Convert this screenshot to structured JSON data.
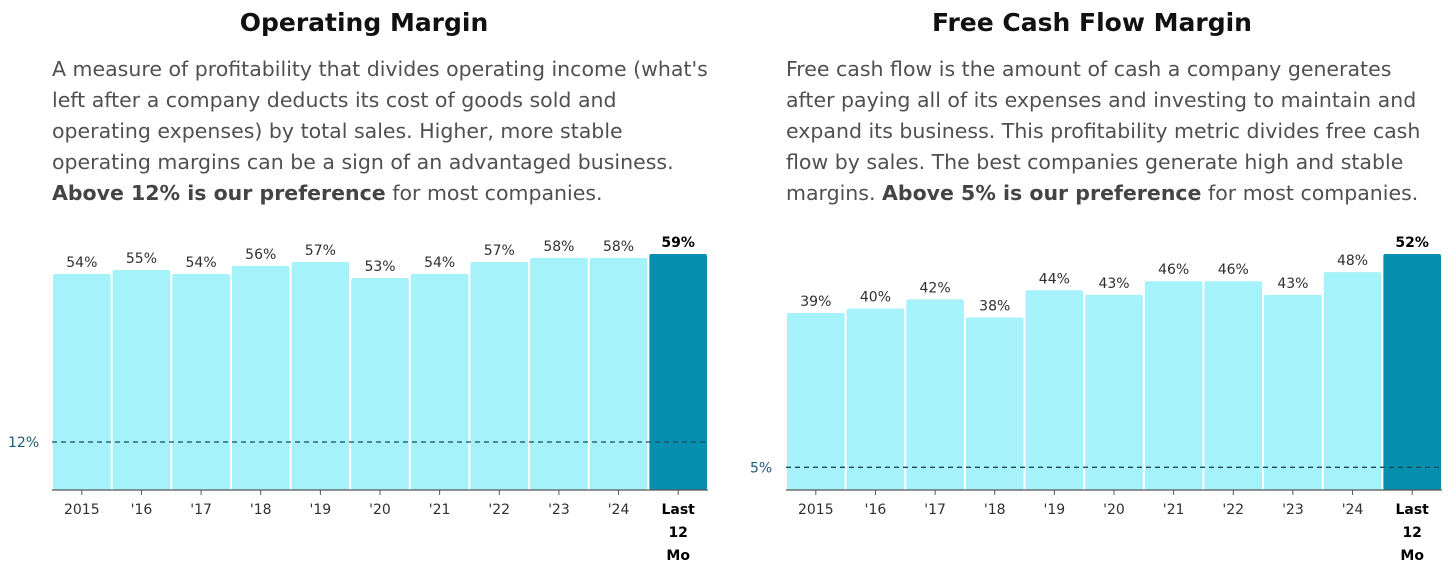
{
  "chart_data": [
    {
      "type": "bar",
      "title": "Operating Margin",
      "description": {
        "text": "A measure of profitability that divides operating income (what's left after a company deducts its cost of goods sold and operating expenses) by total sales. Higher, more stable operating margins can be a sign of an advantaged business.",
        "emphasis": "Above 12% is our preference",
        "tail": "for most companies."
      },
      "categories": [
        "2015",
        "'16",
        "'17",
        "'18",
        "'19",
        "'20",
        "'21",
        "'22",
        "'23",
        "'24",
        "Last 12 Mo"
      ],
      "values": [
        54,
        55,
        54,
        56,
        57,
        53,
        54,
        57,
        58,
        58,
        59
      ],
      "value_labels": [
        "54%",
        "55%",
        "54%",
        "56%",
        "57%",
        "53%",
        "54%",
        "57%",
        "58%",
        "58%",
        "59%"
      ],
      "highlight_index": 10,
      "reference_line": {
        "value": 12,
        "label": "12%"
      },
      "ylim": [
        0,
        59
      ],
      "colors": {
        "bar": "#a6f2fa",
        "highlight": "#078fb0"
      }
    },
    {
      "type": "bar",
      "title": "Free Cash Flow Margin",
      "description": {
        "text": "Free cash flow is the amount of cash a company generates after paying all of its expenses and investing to maintain and expand its business. This profitability metric divides free cash flow by sales. The best companies generate high and stable margins.",
        "emphasis": "Above 5% is our preference",
        "tail": "for most companies."
      },
      "categories": [
        "2015",
        "'16",
        "'17",
        "'18",
        "'19",
        "'20",
        "'21",
        "'22",
        "'23",
        "'24",
        "Last 12 Mo"
      ],
      "values": [
        39,
        40,
        42,
        38,
        44,
        43,
        46,
        46,
        43,
        48,
        52
      ],
      "value_labels": [
        "39%",
        "40%",
        "42%",
        "38%",
        "44%",
        "43%",
        "46%",
        "46%",
        "43%",
        "48%",
        "52%"
      ],
      "highlight_index": 10,
      "reference_line": {
        "value": 5,
        "label": "5%"
      },
      "ylim": [
        0,
        52
      ],
      "colors": {
        "bar": "#a6f2fa",
        "highlight": "#078fb0"
      }
    }
  ]
}
